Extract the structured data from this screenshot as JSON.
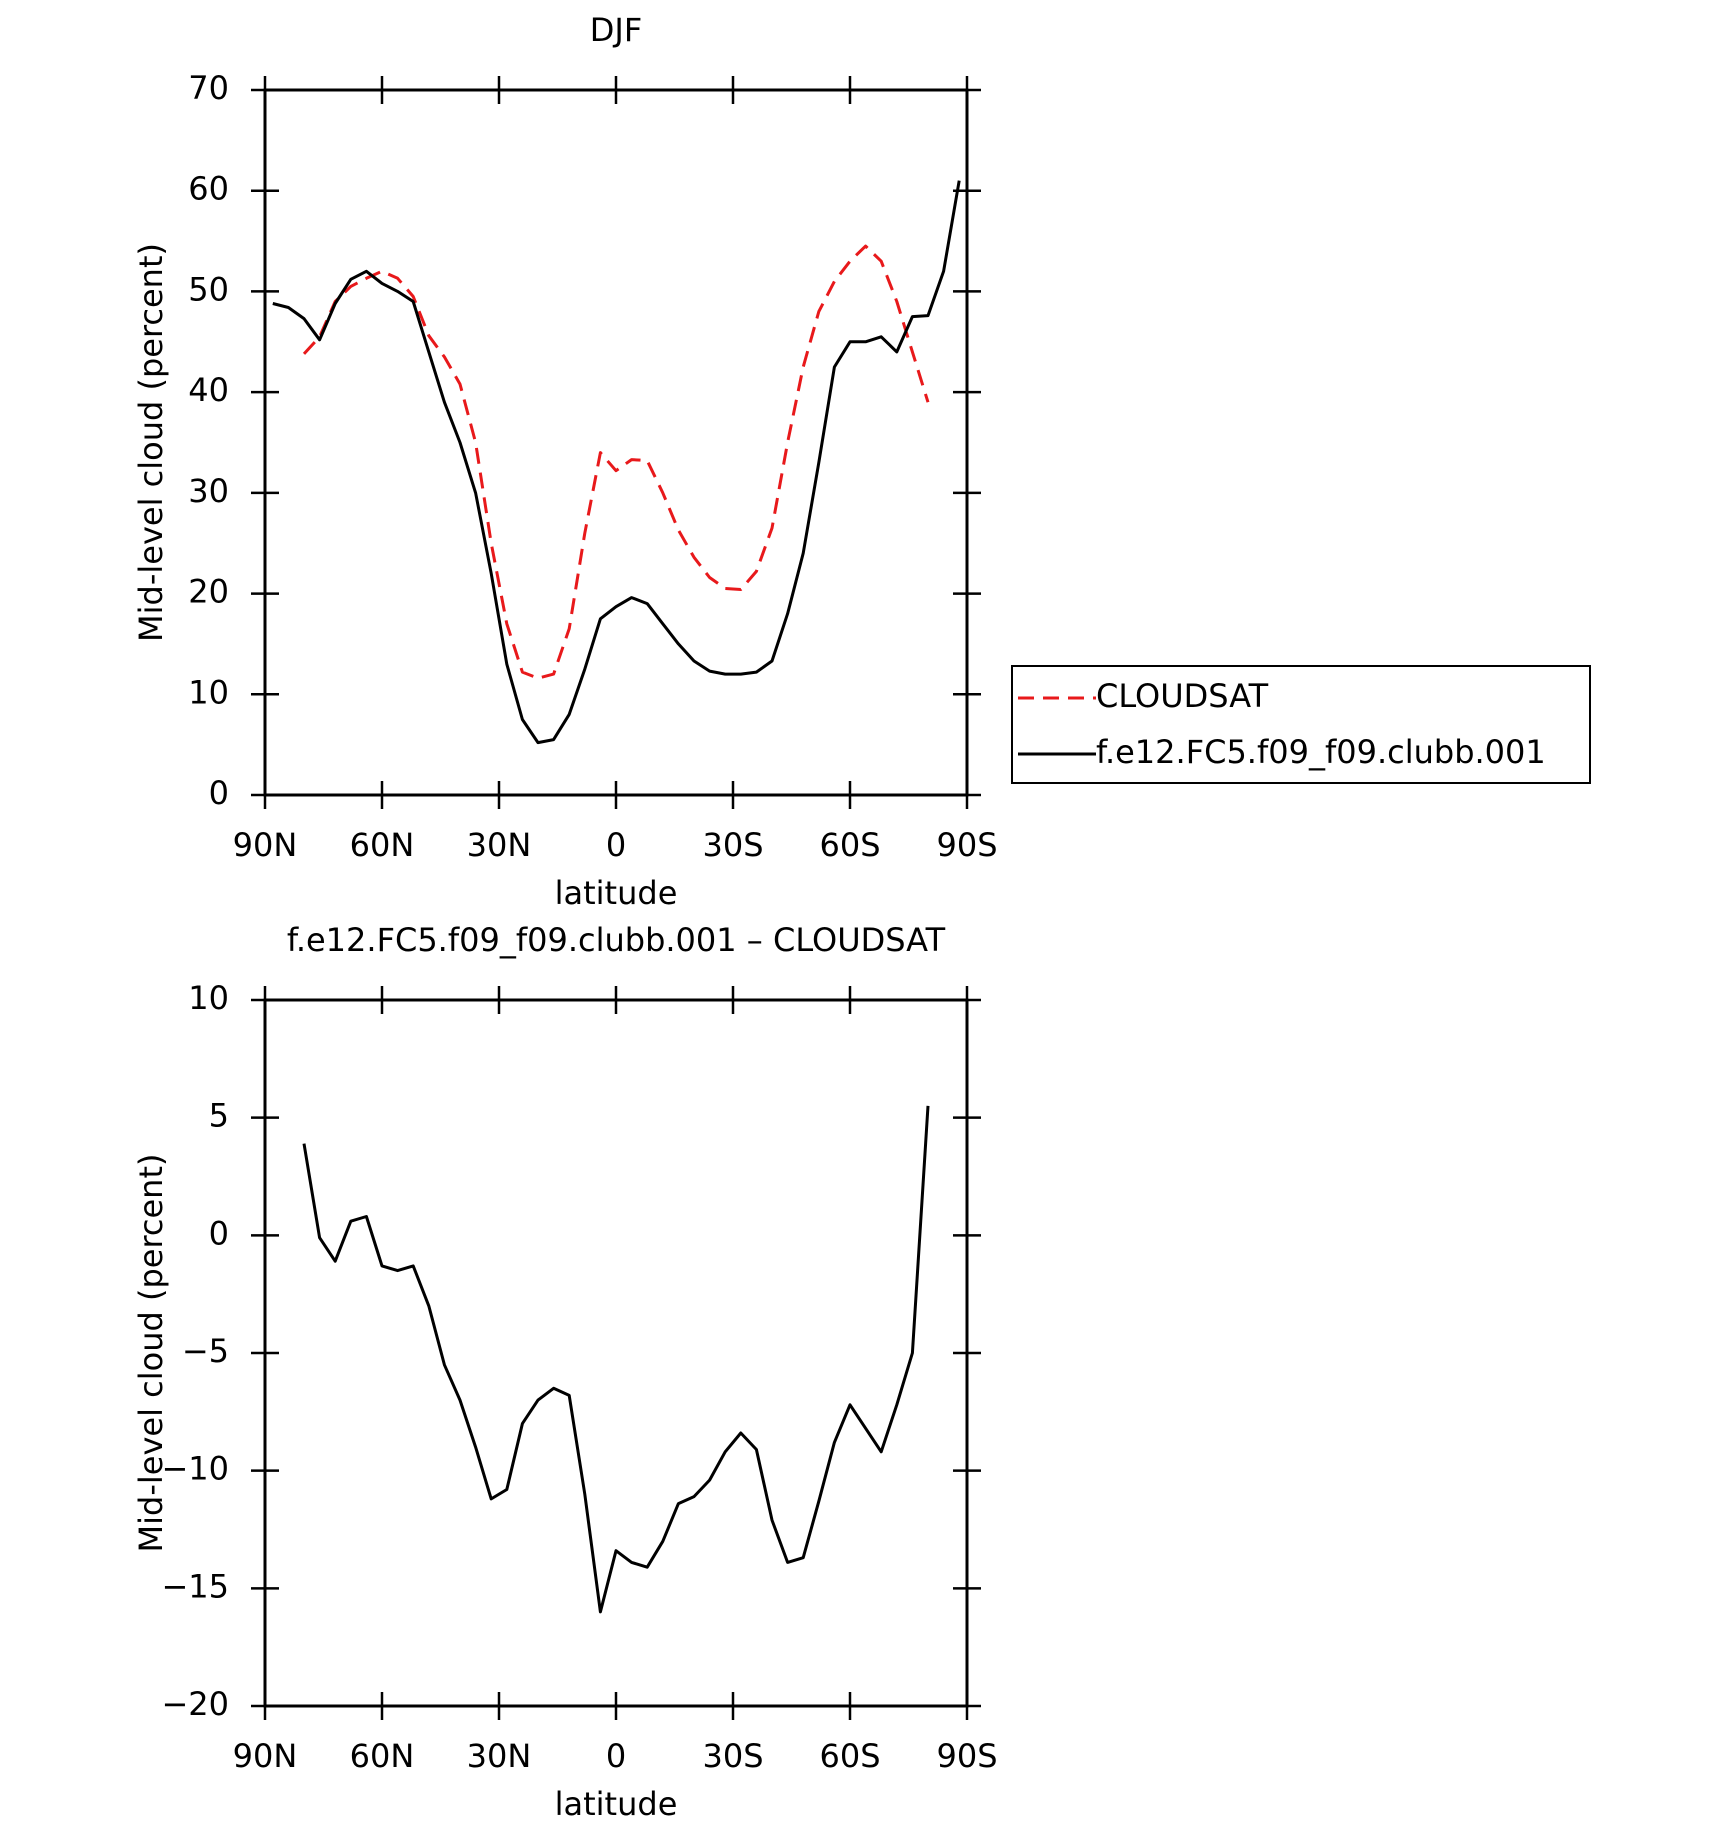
{
  "chart_data": [
    {
      "type": "line",
      "title": "DJF",
      "xlabel": "latitude",
      "ylabel": "Mid-level cloud (percent)",
      "x": [
        88,
        84,
        80,
        76,
        72,
        68,
        64,
        60,
        56,
        52,
        48,
        44,
        40,
        36,
        32,
        28,
        24,
        20,
        16,
        12,
        8,
        4,
        0,
        -4,
        -8,
        -12,
        -16,
        -20,
        -24,
        -28,
        -32,
        -36,
        -40,
        -44,
        -48,
        -52,
        -56,
        -60,
        -64,
        -68,
        -72,
        -76,
        -80,
        -84,
        -88
      ],
      "series": [
        {
          "name": "CLOUDSAT",
          "color": "#e8191b",
          "dash": true,
          "values": [
            null,
            null,
            43.8,
            45.5,
            49,
            50.5,
            51.3,
            52,
            51.3,
            49.5,
            45.6,
            43.5,
            40.8,
            35,
            25,
            17,
            12.2,
            11.6,
            12,
            16.5,
            26,
            34,
            32.2,
            33.3,
            33.2,
            30,
            26.3,
            23.6,
            21.6,
            20.5,
            20.4,
            22.2,
            26.5,
            35,
            42.5,
            48,
            51,
            53,
            54.5,
            53,
            49,
            44,
            39,
            null,
            null
          ]
        },
        {
          "name": "f.e12.FC5.f09_f09.clubb.001",
          "color": "#000000",
          "dash": false,
          "values": [
            48.8,
            48.4,
            47.3,
            45.2,
            48.8,
            51.2,
            52,
            50.8,
            50,
            49,
            44,
            39,
            35,
            30,
            22,
            13,
            7.5,
            5.2,
            5.5,
            8,
            12.5,
            17.5,
            18.7,
            19.6,
            19,
            17,
            15,
            13.3,
            12.3,
            12,
            12,
            12.2,
            13.3,
            18,
            24,
            33,
            42.5,
            45,
            45,
            45.5,
            44,
            47.5,
            47.6,
            52,
            61
          ]
        }
      ],
      "xlim": [
        90,
        -90
      ],
      "xticks": [
        {
          "value": 90,
          "label": "90N"
        },
        {
          "value": 60,
          "label": "60N"
        },
        {
          "value": 30,
          "label": "30N"
        },
        0,
        {
          "value": -30,
          "label": "30S"
        },
        {
          "value": -60,
          "label": "60S"
        },
        {
          "value": -90,
          "label": "90S"
        }
      ],
      "ylim": [
        0,
        70
      ],
      "yticks": [
        0,
        10,
        20,
        30,
        40,
        50,
        60,
        70
      ],
      "legend": "right"
    },
    {
      "type": "line",
      "title": "f.e12.FC5.f09_f09.clubb.001 – CLOUDSAT",
      "xlabel": "latitude",
      "ylabel": "Mid-level cloud (percent)",
      "x": [
        80,
        76,
        72,
        68,
        64,
        60,
        56,
        52,
        48,
        44,
        40,
        36,
        32,
        28,
        24,
        20,
        16,
        12,
        8,
        4,
        0,
        -4,
        -8,
        -12,
        -16,
        -20,
        -24,
        -28,
        -32,
        -36,
        -40,
        -44,
        -48,
        -52,
        -56,
        -60,
        -64,
        -68,
        -72,
        -76,
        -80
      ],
      "series": [
        {
          "color": "#000000",
          "dash": false,
          "values": [
            3.9,
            -0.1,
            -1.1,
            0.6,
            0.8,
            -1.3,
            -1.5,
            -1.3,
            -3,
            -5.5,
            -7,
            -9,
            -11.2,
            -10.8,
            -8,
            -7,
            -6.5,
            -6.8,
            -11,
            -16,
            -13.4,
            -13.9,
            -14.1,
            -13,
            -11.4,
            -11.1,
            -10.4,
            -9.2,
            -8.4,
            -9.1,
            -12.1,
            -13.9,
            -13.7,
            -11.3,
            -8.8,
            -7.2,
            -8.2,
            -9.2,
            -7.2,
            -5,
            5.5
          ]
        }
      ],
      "xlim": [
        90,
        -90
      ],
      "xticks": [
        {
          "value": 90,
          "label": "90N"
        },
        {
          "value": 60,
          "label": "60N"
        },
        {
          "value": 30,
          "label": "30N"
        },
        0,
        {
          "value": -30,
          "label": "30S"
        },
        {
          "value": -60,
          "label": "60S"
        },
        {
          "value": -90,
          "label": "90S"
        }
      ],
      "ylim": [
        -20,
        10
      ],
      "yticks": [
        {
          "value": -20,
          "label": "−20"
        },
        {
          "value": -15,
          "label": "−15"
        },
        {
          "value": -10,
          "label": "−10"
        },
        {
          "value": -5,
          "label": "−5"
        },
        0,
        5,
        10
      ]
    }
  ]
}
